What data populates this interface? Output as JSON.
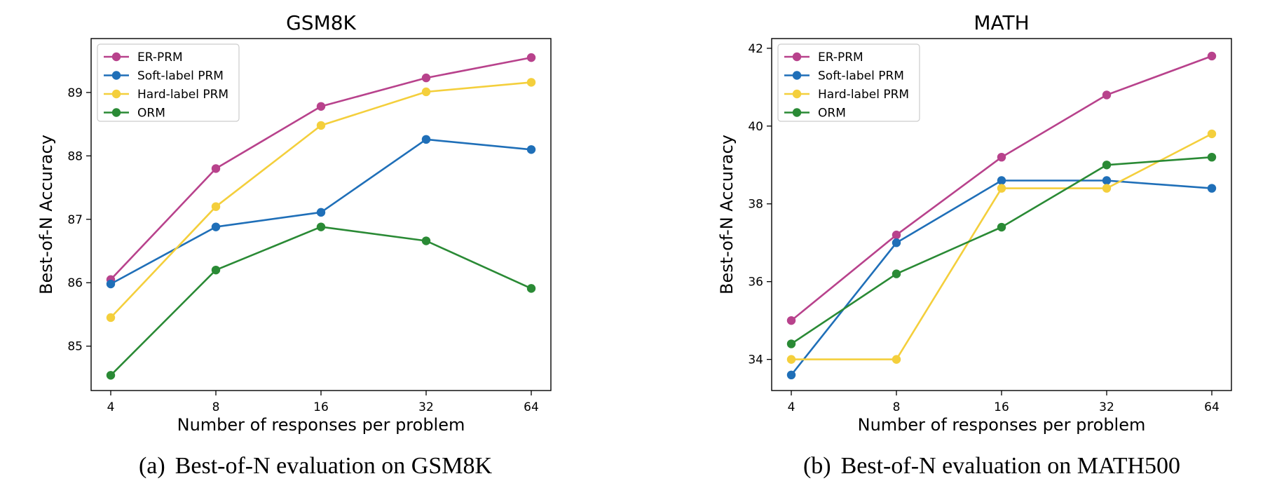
{
  "chart_data": [
    {
      "type": "line",
      "title": "GSM8K",
      "xlabel": "Number of responses per problem",
      "ylabel": "Best-of-N Accuracy",
      "categories": [
        "4",
        "8",
        "16",
        "32",
        "64"
      ],
      "ylim": [
        84.3,
        89.85
      ],
      "yticks": [
        "85",
        "86",
        "87",
        "88",
        "89"
      ],
      "grid": false,
      "legend_position": "upper-left",
      "series": [
        {
          "name": "ER-PRM",
          "color": "#b8428c",
          "values": [
            86.05,
            87.8,
            88.78,
            89.23,
            89.55
          ]
        },
        {
          "name": "Soft-label PRM",
          "color": "#1f6fb8",
          "values": [
            85.98,
            86.88,
            87.11,
            88.26,
            88.1
          ]
        },
        {
          "name": "Hard-label PRM",
          "color": "#f4cf3c",
          "values": [
            85.45,
            87.2,
            88.48,
            89.01,
            89.16
          ]
        },
        {
          "name": "ORM",
          "color": "#2a8a35",
          "values": [
            84.54,
            86.2,
            86.88,
            86.66,
            85.91
          ]
        }
      ],
      "caption_label": "(a)",
      "caption_text": "Best-of-N evaluation on GSM8K"
    },
    {
      "type": "line",
      "title": "MATH",
      "xlabel": "Number of responses per problem",
      "ylabel": "Best-of-N Accuracy",
      "categories": [
        "4",
        "8",
        "16",
        "32",
        "64"
      ],
      "ylim": [
        33.2,
        42.25
      ],
      "yticks": [
        "34",
        "36",
        "38",
        "40",
        "42"
      ],
      "grid": false,
      "legend_position": "upper-left",
      "series": [
        {
          "name": "ER-PRM",
          "color": "#b8428c",
          "values": [
            35.0,
            37.2,
            39.2,
            40.8,
            41.8
          ]
        },
        {
          "name": "Soft-label PRM",
          "color": "#1f6fb8",
          "values": [
            33.6,
            37.0,
            38.6,
            38.6,
            38.4
          ]
        },
        {
          "name": "Hard-label PRM",
          "color": "#f4cf3c",
          "values": [
            34.0,
            34.0,
            38.4,
            38.4,
            39.8
          ]
        },
        {
          "name": "ORM",
          "color": "#2a8a35",
          "values": [
            34.4,
            36.2,
            37.4,
            39.0,
            39.2
          ]
        }
      ],
      "caption_label": "(b)",
      "caption_text": "Best-of-N evaluation on MATH500"
    }
  ]
}
